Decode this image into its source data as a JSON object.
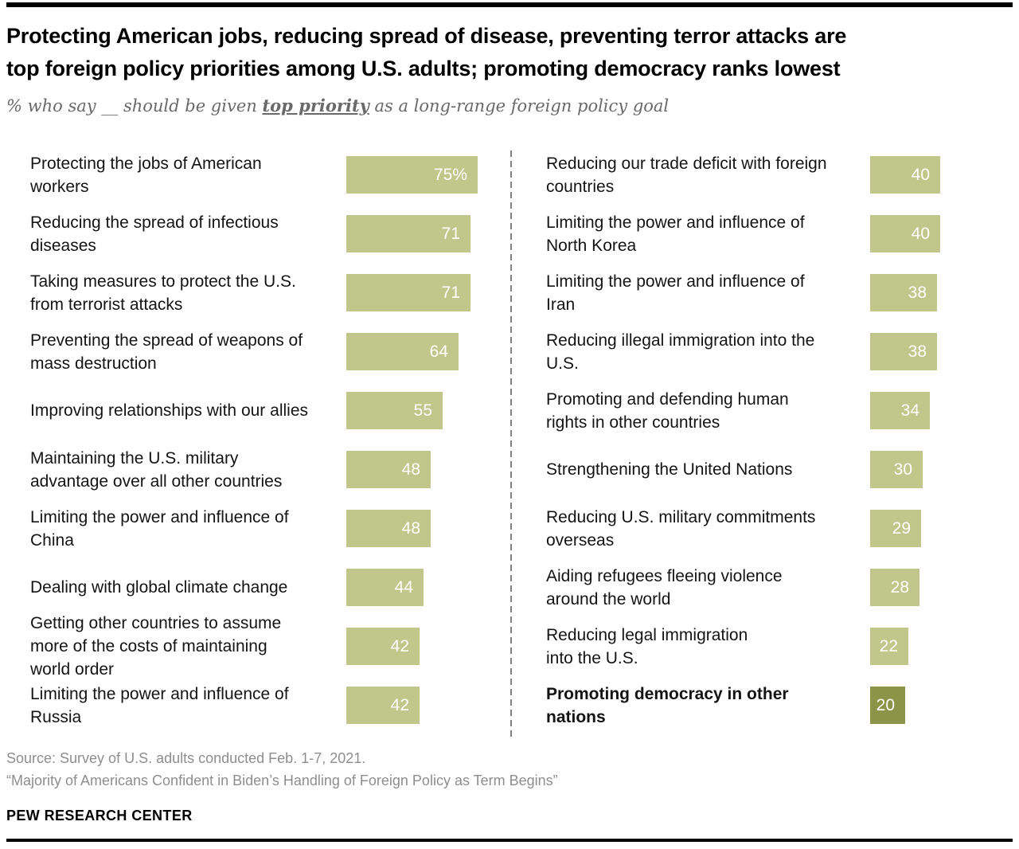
{
  "subtitle": {
    "prefix": "% who say __ should be given ",
    "emphasis": "top priority",
    "suffix": " as a long-range foreign policy goal"
  },
  "chart_data": {
    "type": "bar",
    "orientation": "horizontal",
    "title": "Protecting American jobs, reducing spread of disease, preventing terror attacks are\ntop foreign policy priorities among U.S. adults; promoting democracy ranks lowest",
    "subtitle": "% who say __ should be given top priority as a long-range foreign policy goal",
    "xlim": [
      0,
      75
    ],
    "grid": false,
    "legend": false,
    "bar_color": "#c1c78a",
    "highlight_bar_color": "#8c9447",
    "value_label_color": "#ffffff",
    "columns": [
      {
        "items": [
          {
            "label": "Protecting the jobs of American\nworkers",
            "value": 75,
            "display": "75%"
          },
          {
            "label": "Reducing the spread of infectious\ndiseases",
            "value": 71,
            "display": "71"
          },
          {
            "label": "Taking measures to protect the U.S.\nfrom terrorist attacks",
            "value": 71,
            "display": "71"
          },
          {
            "label": "Preventing the spread of weapons of\nmass destruction",
            "value": 64,
            "display": "64"
          },
          {
            "label": "Improving relationships with our allies",
            "value": 55,
            "display": "55"
          },
          {
            "label": "Maintaining the U.S. military\nadvantage over all other countries",
            "value": 48,
            "display": "48"
          },
          {
            "label": "Limiting the power and influence of\nChina",
            "value": 48,
            "display": "48"
          },
          {
            "label": "Dealing with global climate change",
            "value": 44,
            "display": "44"
          },
          {
            "label": "Getting other countries to assume\nmore of the costs of maintaining\nworld order",
            "value": 42,
            "display": "42"
          },
          {
            "label": "Limiting the power and influence of\nRussia",
            "value": 42,
            "display": "42"
          }
        ]
      },
      {
        "items": [
          {
            "label": "Reducing our trade deficit with foreign\ncountries",
            "value": 40,
            "display": "40"
          },
          {
            "label": "Limiting the power and influence of\nNorth Korea",
            "value": 40,
            "display": "40"
          },
          {
            "label": "Limiting the power and influence of\nIran",
            "value": 38,
            "display": "38"
          },
          {
            "label": "Reducing illegal immigration into the\nU.S.",
            "value": 38,
            "display": "38"
          },
          {
            "label": "Promoting and defending human\nrights in other countries",
            "value": 34,
            "display": "34"
          },
          {
            "label": "Strengthening the United Nations",
            "value": 30,
            "display": "30"
          },
          {
            "label": "Reducing U.S. military commitments\noverseas",
            "value": 29,
            "display": "29"
          },
          {
            "label": "Aiding refugees fleeing violence\naround the world",
            "value": 28,
            "display": "28"
          },
          {
            "label": "Reducing legal immigration\ninto the U.S.",
            "value": 22,
            "display": "22"
          },
          {
            "label": "Promoting democracy in other\nnations",
            "value": 20,
            "display": "20",
            "bold": true,
            "highlight": true
          }
        ]
      }
    ]
  },
  "footer": {
    "source_line1": "Source: Survey of U.S. adults conducted Feb. 1-7, 2021.",
    "source_line2": "“Majority of Americans Confident in Biden’s Handling of Foreign Policy as Term Begins”",
    "brand": "PEW RESEARCH CENTER"
  }
}
